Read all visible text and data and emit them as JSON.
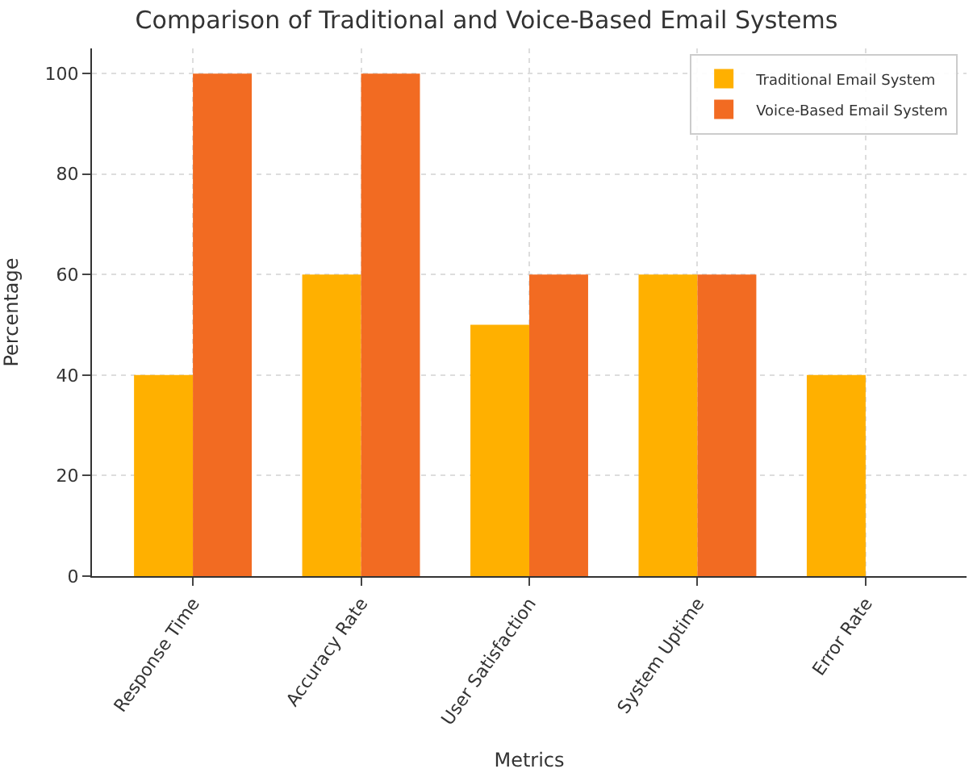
{
  "chart_data": {
    "type": "bar",
    "title": "Comparison of Traditional and Voice-Based Email Systems",
    "xlabel": "Metrics",
    "ylabel": "Percentage",
    "categories": [
      "Response Time",
      "Accuracy Rate",
      "User Satisfaction",
      "System Uptime",
      "Error Rate"
    ],
    "series": [
      {
        "name": "Traditional Email System",
        "color": "#ffb000",
        "values": [
          40,
          60,
          50,
          60,
          40
        ]
      },
      {
        "name": "Voice-Based Email System",
        "color": "#f26b22",
        "values": [
          100,
          100,
          60,
          60,
          0
        ]
      }
    ],
    "ylim": [
      0,
      105
    ],
    "yticks": [
      0,
      20,
      40,
      60,
      80,
      100
    ],
    "grid": true,
    "legend": "top right"
  }
}
